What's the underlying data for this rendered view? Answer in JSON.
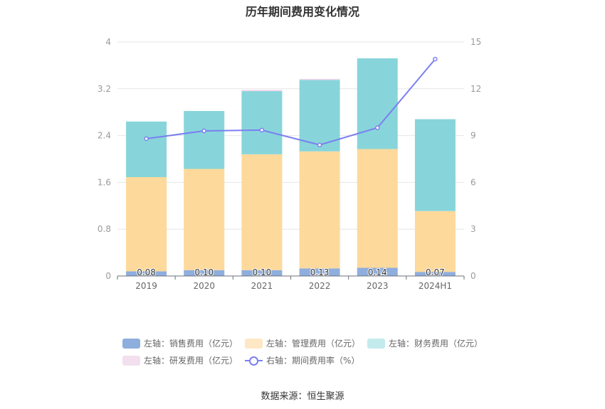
{
  "chart_data": {
    "type": "bar",
    "title": "历年期间费用变化情况",
    "categories": [
      "2019",
      "2020",
      "2021",
      "2022",
      "2023",
      "2024H1"
    ],
    "y_left": {
      "ticks": [
        "0",
        "0.8",
        "1.6",
        "2.4",
        "3.2",
        "4"
      ],
      "ylim": [
        0,
        4
      ]
    },
    "y_right": {
      "ticks": [
        "0",
        "3",
        "6",
        "9",
        "12",
        "15"
      ],
      "ylim": [
        0,
        15
      ]
    },
    "series": [
      {
        "name": "左轴：销售费用（亿元）",
        "type": "bar",
        "axis": "left",
        "color": "#8eaedd",
        "values": [
          0.08,
          0.1,
          0.1,
          0.13,
          0.14,
          0.07
        ],
        "labels": [
          "0.08",
          "0.10",
          "0.10",
          "0.13",
          "0.14",
          "0.07"
        ]
      },
      {
        "name": "左轴：管理费用（亿元）",
        "type": "bar",
        "axis": "left",
        "color": "#fdd99b",
        "values": [
          1.61,
          1.73,
          1.98,
          2.0,
          2.03,
          1.04
        ]
      },
      {
        "name": "左轴：财务费用（亿元）",
        "type": "bar",
        "axis": "left",
        "color": "#87d5da",
        "values": [
          0.95,
          0.99,
          1.08,
          1.22,
          1.55,
          1.57
        ]
      },
      {
        "name": "左轴：研发费用（亿元）",
        "type": "bar",
        "axis": "left",
        "color": "#f0d6eb",
        "values": [
          0.0,
          0.0,
          0.02,
          0.02,
          0.0,
          0.0
        ]
      },
      {
        "name": "右轴：期间费用率（%）",
        "type": "line",
        "axis": "right",
        "color": "#7b7ff0",
        "values": [
          8.8,
          9.3,
          9.35,
          8.4,
          9.5,
          13.9
        ]
      }
    ],
    "legend_position": "bottom",
    "grid": true
  },
  "source": "数据来源：恒生聚源"
}
